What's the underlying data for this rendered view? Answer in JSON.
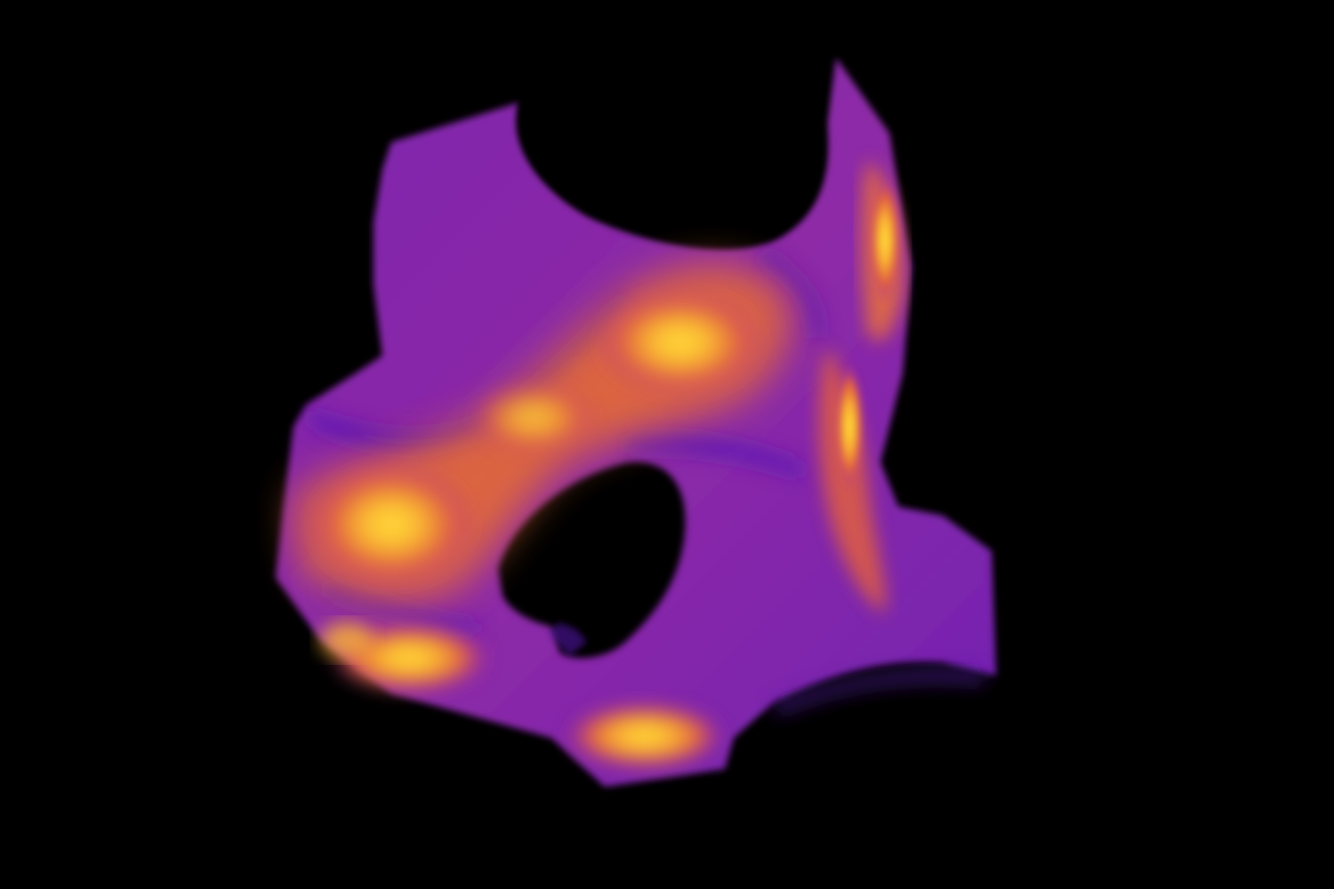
{
  "scene": {
    "description_type": "volume-rendering",
    "colormap": "plasma",
    "background_color": "#000000",
    "palette": {
      "deep_purple": "#4a10a8",
      "violet": "#7a22b0",
      "magenta": "#b0309a",
      "orange": "#f08a30",
      "yellow": "#ffd23a"
    }
  }
}
